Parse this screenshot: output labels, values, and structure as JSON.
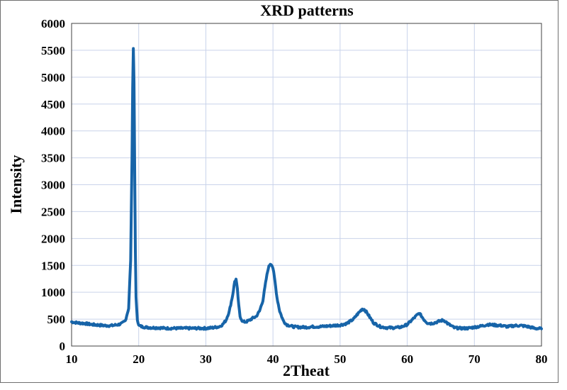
{
  "chart_data": {
    "type": "line",
    "title": "XRD patterns",
    "xlabel": "2Theat",
    "ylabel": "Intensity",
    "xlim": [
      10,
      80
    ],
    "ylim": [
      0,
      6000
    ],
    "x_ticks": [
      10,
      20,
      30,
      40,
      50,
      60,
      70,
      80
    ],
    "y_ticks": [
      0,
      500,
      1000,
      1500,
      2000,
      2500,
      3000,
      3500,
      4000,
      4500,
      5000,
      5500,
      6000
    ],
    "grid": true,
    "legend": "none",
    "series_color": "#1764a8",
    "grid_color": "#c9d3ea",
    "series": [
      {
        "x": [
          10,
          11,
          12,
          13,
          14,
          15,
          16,
          17,
          17.5,
          18,
          18.5,
          18.8,
          19,
          19.1,
          19.2,
          19.3,
          19.4,
          19.5,
          19.6,
          19.8,
          20,
          20.5,
          21,
          22,
          23,
          24,
          25,
          26,
          27,
          28,
          29,
          30,
          31,
          32,
          32.5,
          33,
          33.5,
          34,
          34.3,
          34.5,
          34.7,
          34.9,
          35.1,
          35.5,
          36,
          36.5,
          37,
          37.5,
          38,
          38.5,
          39,
          39.3,
          39.6,
          39.8,
          40,
          40.3,
          40.6,
          41,
          41.5,
          42,
          43,
          44,
          45,
          46,
          47,
          48,
          49,
          50,
          51,
          52,
          52.5,
          53,
          53.3,
          53.6,
          54,
          54.5,
          55,
          56,
          57,
          58,
          59,
          60,
          60.5,
          61,
          61.5,
          61.8,
          62.1,
          62.5,
          63,
          63.5,
          64,
          64.5,
          65,
          65.3,
          65.7,
          66,
          66.5,
          67,
          68,
          69,
          70,
          71,
          72,
          73,
          74,
          75,
          76,
          77,
          78,
          79,
          80
        ],
        "y": [
          450,
          430,
          420,
          400,
          390,
          380,
          380,
          400,
          420,
          470,
          700,
          1600,
          3500,
          4800,
          5550,
          4900,
          3300,
          1800,
          900,
          500,
          380,
          360,
          350,
          340,
          340,
          330,
          330,
          330,
          330,
          330,
          330,
          330,
          340,
          360,
          400,
          480,
          650,
          950,
          1200,
          1240,
          1050,
          750,
          550,
          450,
          450,
          480,
          520,
          550,
          650,
          850,
          1250,
          1450,
          1530,
          1520,
          1450,
          1200,
          900,
          650,
          480,
          400,
          360,
          350,
          350,
          360,
          360,
          370,
          380,
          390,
          420,
          500,
          580,
          650,
          690,
          680,
          620,
          520,
          430,
          360,
          340,
          340,
          350,
          400,
          460,
          520,
          580,
          610,
          560,
          490,
          430,
          420,
          430,
          450,
          470,
          480,
          460,
          420,
          380,
          340,
          330,
          330,
          350,
          370,
          400,
          390,
          380,
          360,
          380,
          380,
          360,
          330,
          320
        ]
      }
    ]
  }
}
